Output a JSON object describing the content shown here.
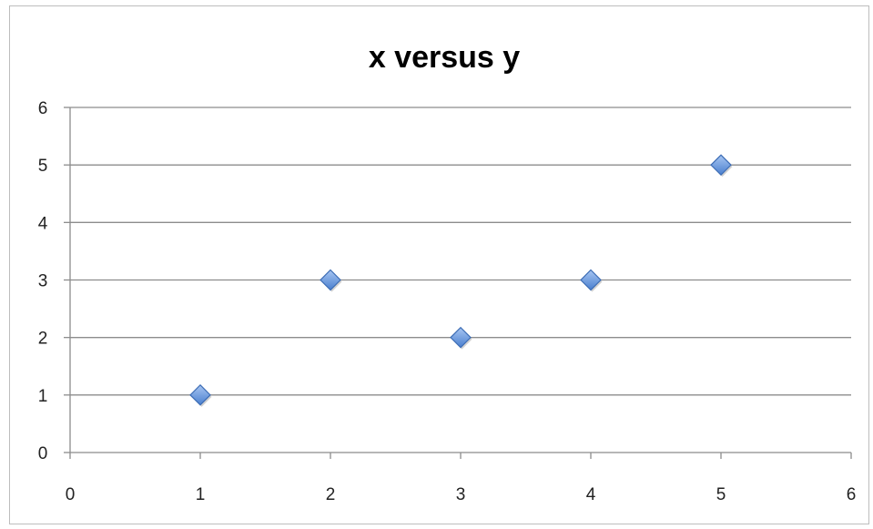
{
  "chart_data": {
    "type": "scatter",
    "title": "x versus y",
    "xlabel": "",
    "ylabel": "",
    "xlim": [
      0,
      6
    ],
    "ylim": [
      0,
      6
    ],
    "x_ticks": [
      0,
      1,
      2,
      3,
      4,
      5,
      6
    ],
    "y_ticks": [
      0,
      1,
      2,
      3,
      4,
      5,
      6
    ],
    "grid": "horizontal",
    "legend": "none",
    "marker": "diamond",
    "series": [
      {
        "x": [
          1,
          2,
          3,
          4,
          5
        ],
        "y": [
          1,
          3,
          2,
          3,
          5
        ],
        "color": "#5b8fd6"
      }
    ]
  }
}
